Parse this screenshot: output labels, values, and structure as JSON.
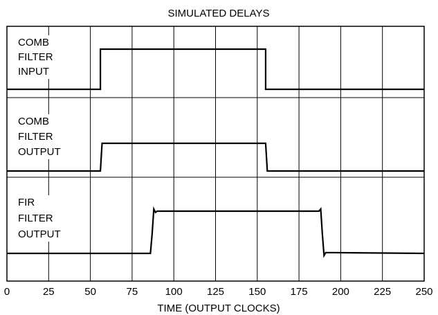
{
  "chart_data": {
    "type": "line",
    "title": "SIMULATED DELAYS",
    "xlabel": "TIME (OUTPUT CLOCKS)",
    "ylabel": "",
    "xlim": [
      0,
      250
    ],
    "x_ticks": [
      "0",
      "25",
      "50",
      "75",
      "100",
      "125",
      "150",
      "175",
      "200",
      "225",
      "250"
    ],
    "grid": true,
    "series": [
      {
        "name": "COMB FILTER INPUT",
        "label_lines": [
          "COMB",
          "FILTER",
          "INPUT"
        ],
        "x": [
          0,
          56,
          56,
          155,
          155,
          250
        ],
        "y": [
          0,
          0,
          1,
          1,
          0,
          0
        ]
      },
      {
        "name": "COMB FILTER OUTPUT",
        "label_lines": [
          "COMB",
          "FILTER",
          "OUTPUT"
        ],
        "x": [
          0,
          56,
          57,
          155,
          156,
          250
        ],
        "y": [
          0,
          0,
          1,
          1,
          0,
          0
        ]
      },
      {
        "name": "FIR FILTER OUTPUT",
        "label_lines": [
          "FIR",
          "FILTER",
          "OUTPUT"
        ],
        "x": [
          0,
          86,
          87,
          88,
          89,
          90,
          187,
          188,
          189,
          190,
          191,
          250
        ],
        "y": [
          0,
          0,
          0.45,
          1.05,
          0.97,
          1,
          1,
          1.05,
          0.45,
          -0.05,
          0.02,
          0
        ]
      }
    ]
  }
}
